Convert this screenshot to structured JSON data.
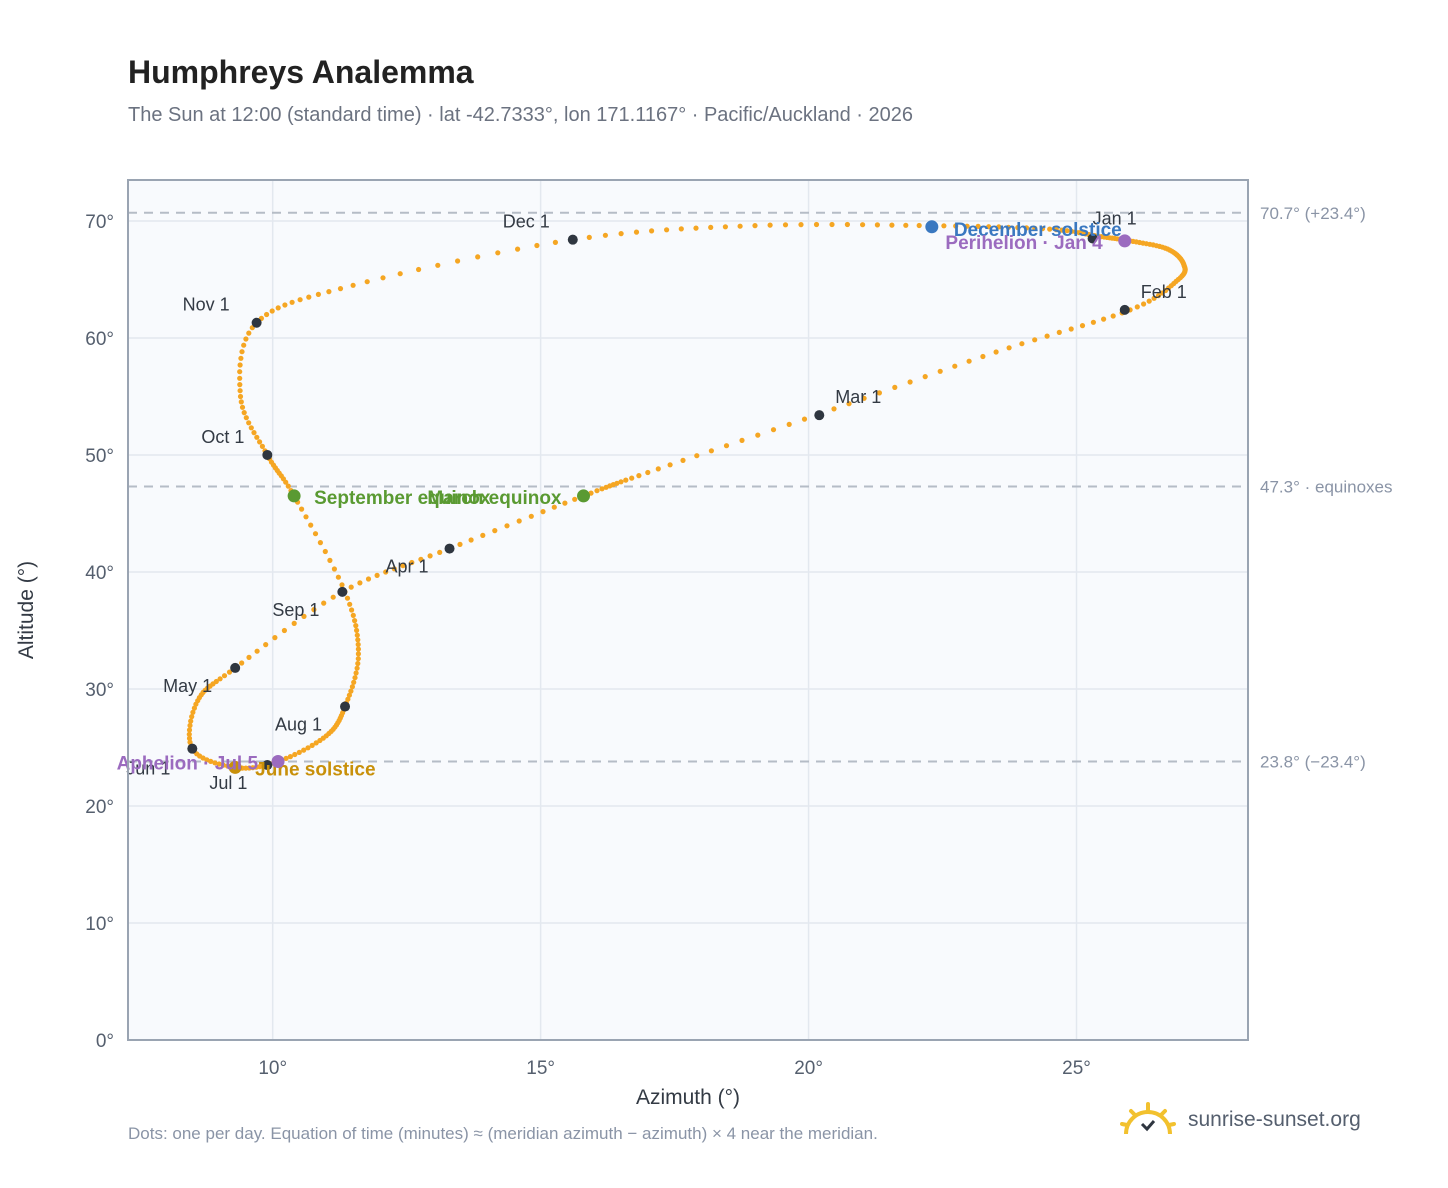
{
  "header": {
    "title": "Humphreys Analemma",
    "subtitle": "The Sun at 12:00 (standard time) · lat -42.7333°, lon 171.1167° · Pacific/Auckland · 2026"
  },
  "footer": {
    "note": "Dots: one per day. Equation of time (minutes) ≈ (meridian azimuth − azimuth) × 4 near the meridian.",
    "brand": "sunrise-sunset.org"
  },
  "colors": {
    "curve": "#f5a623",
    "month_marker": "#2f3640",
    "solstice_december": "#3a78c0",
    "solstice_june": "#c8900a",
    "equinox": "#5a9a32",
    "apsis": "#9b6bbf",
    "reference_line": "#b5bcc6",
    "plot_background": "#f8fafd"
  },
  "chart_data": {
    "type": "scatter",
    "xlabel": "Azimuth (°)",
    "ylabel": "Altitude (°)",
    "xlim": [
      7.3,
      28.2
    ],
    "ylim": [
      0,
      73.5
    ],
    "xticks": [
      10,
      15,
      20,
      25
    ],
    "yticks": [
      0,
      10,
      20,
      30,
      40,
      50,
      60,
      70
    ],
    "grid": true,
    "reference_lines": [
      {
        "y": 70.7,
        "label": "70.7° (+23.4°)"
      },
      {
        "y": 47.3,
        "label": "47.3° · equinoxes"
      },
      {
        "y": 23.8,
        "label": "23.8° (−23.4°)"
      }
    ],
    "series": [
      {
        "points": [
          [
            25.4,
            68.7
          ],
          [
            26.0,
            68.3
          ],
          [
            26.7,
            67.6
          ],
          [
            27.0,
            66.3
          ],
          [
            26.9,
            65.0
          ],
          [
            26.0,
            62.4
          ],
          [
            23.5,
            58.8
          ],
          [
            20.2,
            53.5
          ],
          [
            17.0,
            48.5
          ],
          [
            15.8,
            46.5
          ],
          [
            13.3,
            42.0
          ],
          [
            11.3,
            38.3
          ],
          [
            9.3,
            31.8
          ],
          [
            8.6,
            29.0
          ],
          [
            8.5,
            24.9
          ],
          [
            9.3,
            23.3
          ],
          [
            10.1,
            23.8
          ],
          [
            11.0,
            26.0
          ],
          [
            11.35,
            28.5
          ],
          [
            11.6,
            33.0
          ],
          [
            11.35,
            38.3
          ],
          [
            10.4,
            46.5
          ],
          [
            9.9,
            50.0
          ],
          [
            9.4,
            55.0
          ],
          [
            9.7,
            61.3
          ],
          [
            11.5,
            64.5
          ],
          [
            15.6,
            68.4
          ],
          [
            19.0,
            69.6
          ],
          [
            22.3,
            69.6
          ],
          [
            24.5,
            69.3
          ]
        ]
      }
    ],
    "month_markers": [
      {
        "label": "Jan 1",
        "x": 25.3,
        "y": 68.5
      },
      {
        "label": "Feb 1",
        "x": 25.9,
        "y": 62.4
      },
      {
        "label": "Mar 1",
        "x": 20.2,
        "y": 53.4
      },
      {
        "label": "Apr 1",
        "x": 13.3,
        "y": 42.0
      },
      {
        "label": "May 1",
        "x": 9.3,
        "y": 31.8
      },
      {
        "label": "Jun 1",
        "x": 8.5,
        "y": 24.9
      },
      {
        "label": "Jul 1",
        "x": 9.9,
        "y": 23.5
      },
      {
        "label": "Aug 1",
        "x": 11.35,
        "y": 28.5
      },
      {
        "label": "Sep 1",
        "x": 11.3,
        "y": 38.3
      },
      {
        "label": "Oct 1",
        "x": 9.9,
        "y": 50.0
      },
      {
        "label": "Nov 1",
        "x": 9.7,
        "y": 61.3
      },
      {
        "label": "Dec 1",
        "x": 15.6,
        "y": 68.4
      }
    ],
    "events": [
      {
        "label": "December solstice",
        "x": 22.3,
        "y": 69.5,
        "kind": "solstice_december"
      },
      {
        "label": "Perihelion · Jan 4",
        "x": 25.9,
        "y": 68.3,
        "kind": "apsis"
      },
      {
        "label": "March equinox",
        "x": 15.8,
        "y": 46.5,
        "kind": "equinox"
      },
      {
        "label": "September equinox",
        "x": 10.4,
        "y": 46.5,
        "kind": "equinox"
      },
      {
        "label": "June solstice",
        "x": 9.3,
        "y": 23.3,
        "kind": "solstice_june"
      },
      {
        "label": "Aphelion · Jul 5",
        "x": 10.1,
        "y": 23.8,
        "kind": "apsis"
      }
    ]
  }
}
